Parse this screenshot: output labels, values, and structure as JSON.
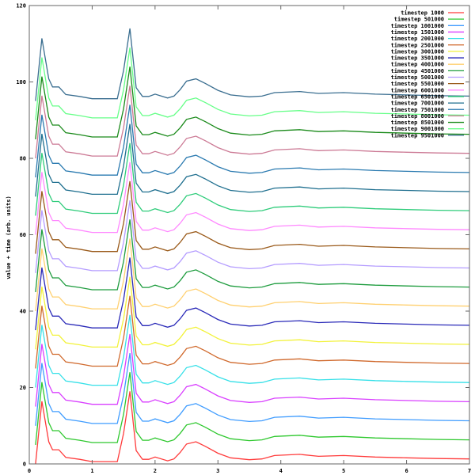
{
  "chart_data": {
    "type": "line",
    "title": "",
    "xlabel": "",
    "ylabel": "value + time (arb. units)",
    "xlim": [
      0,
      7
    ],
    "ylim": [
      0,
      120
    ],
    "xticks": [
      0,
      1,
      2,
      3,
      4,
      5,
      6,
      7
    ],
    "yticks": [
      0,
      20,
      40,
      60,
      80,
      100,
      120
    ],
    "grid": false,
    "legend_position": "top-right",
    "series_offset": 5,
    "base_profile": {
      "x": [
        0.1,
        0.2,
        0.31,
        0.37,
        0.47,
        0.58,
        0.8,
        1.0,
        1.2,
        1.4,
        1.5,
        1.6,
        1.7,
        1.8,
        1.9,
        2.0,
        2.2,
        2.3,
        2.4,
        2.5,
        2.65,
        2.8,
        3.0,
        3.2,
        3.5,
        3.7,
        3.9,
        4.3,
        4.6,
        5.0,
        5.5,
        6.0,
        6.5,
        7.0
      ],
      "y": [
        0,
        16.4,
        5.8,
        3.7,
        3.7,
        1.7,
        1.2,
        0.6,
        0.6,
        0.6,
        8.0,
        19.0,
        3.5,
        1.2,
        1.2,
        1.8,
        0.8,
        1.3,
        3.0,
        5.2,
        5.8,
        4.6,
        2.8,
        1.6,
        1.1,
        1.3,
        2.2,
        2.5,
        2.0,
        2.2,
        1.8,
        1.6,
        1.4,
        1.3
      ]
    },
    "series": [
      {
        "name": "timestep 1000",
        "offset": 0,
        "color": "#ff3b3b"
      },
      {
        "name": "timestep 501000",
        "offset": 5,
        "color": "#2ec82e"
      },
      {
        "name": "timestep 1001000",
        "offset": 10,
        "color": "#3f9cff"
      },
      {
        "name": "timestep 1501000",
        "offset": 15,
        "color": "#d93fff"
      },
      {
        "name": "timestep 2001000",
        "offset": 20,
        "color": "#36e0e8"
      },
      {
        "name": "timestep 2501000",
        "offset": 25,
        "color": "#d0692c"
      },
      {
        "name": "timestep 3001000",
        "offset": 30,
        "color": "#f2f23a"
      },
      {
        "name": "timestep 3501000",
        "offset": 35,
        "color": "#2a2ab8"
      },
      {
        "name": "timestep 4001000",
        "offset": 40,
        "color": "#ffd070"
      },
      {
        "name": "timestep 4501000",
        "offset": 45,
        "color": "#1e9c3e"
      },
      {
        "name": "timestep 5001000",
        "offset": 50,
        "color": "#b49cff"
      },
      {
        "name": "timestep 5501000",
        "offset": 55,
        "color": "#9a5a1a"
      },
      {
        "name": "timestep 6001000",
        "offset": 60,
        "color": "#ff88ff"
      },
      {
        "name": "timestep 6501000",
        "offset": 65,
        "color": "#2ecc7a"
      },
      {
        "name": "timestep 7001000",
        "offset": 70,
        "color": "#1f6f8f"
      },
      {
        "name": "timestep 7501000",
        "offset": 75,
        "color": "#2a7ab0"
      },
      {
        "name": "timestep 8001000",
        "offset": 80,
        "color": "#cc7a95"
      },
      {
        "name": "timestep 8501000",
        "offset": 85,
        "color": "#1a8a1a"
      },
      {
        "name": "timestep 9001000",
        "offset": 90,
        "color": "#66ff88"
      },
      {
        "name": "timestep 9501000",
        "offset": 95,
        "color": "#3a6e90"
      }
    ]
  }
}
